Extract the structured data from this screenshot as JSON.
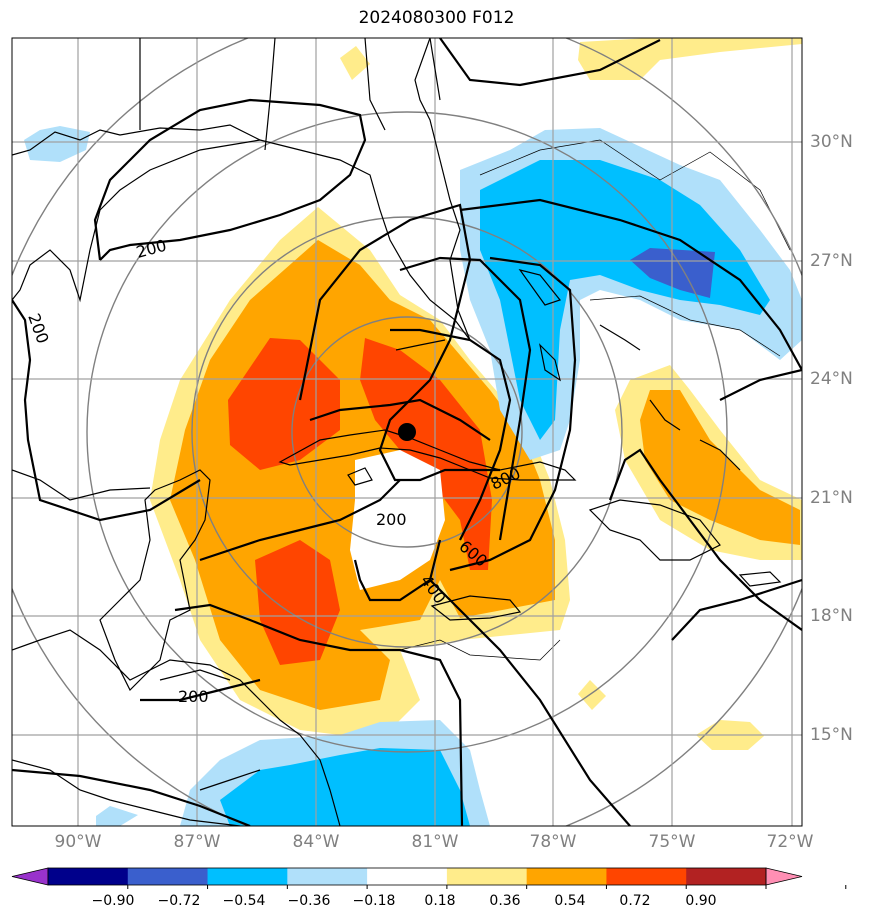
{
  "title": "2024080300 F012",
  "map": {
    "lon_ticks": [
      "90°W",
      "87°W",
      "84°W",
      "81°W",
      "78°W",
      "75°W",
      "72°W"
    ],
    "lat_ticks": [
      "30°N",
      "27°N",
      "24°N",
      "21°N",
      "18°N",
      "15°N"
    ],
    "contour_labels": [
      "200",
      "200",
      "200",
      "200",
      "800",
      "600",
      "400"
    ],
    "storm_center": "storm-center-marker"
  },
  "colorbar": {
    "tick_labels": [
      "−0.90",
      "−0.72",
      "−0.54",
      "−0.36",
      "−0.18",
      "0.18",
      "0.36",
      "0.54",
      "0.72",
      "0.90"
    ],
    "colors": [
      "#9932cc",
      "#00008b",
      "#3a5fcd",
      "#00bfff",
      "#b0e0fa",
      "#ffffff",
      "#ffec8b",
      "#ffa500",
      "#ff4500",
      "#b22222",
      "#ff8fb4"
    ]
  },
  "colors": {
    "land_outline": "#000000",
    "grid": "#a0a0a0",
    "range_rings": "#808080",
    "contours": "#000000"
  }
}
